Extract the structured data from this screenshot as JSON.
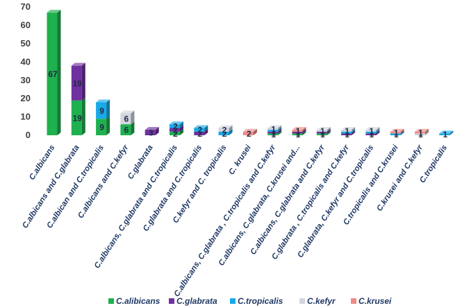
{
  "chart_data": {
    "type": "bar",
    "stacked": true,
    "title": "",
    "xlabel": "",
    "ylabel": "",
    "ylim": [
      0,
      70
    ],
    "yticks": [
      0,
      10,
      20,
      30,
      40,
      50,
      60,
      70
    ],
    "grid": false,
    "legend_position": "bottom",
    "categories": [
      "C.albicans",
      "C.albicans and C.glabrata",
      "C.albican  and C.tropicalis",
      "C.albicans and C.kefyr",
      "C.glabrata",
      "C.albicans, C.glabrata and C.tropicalis",
      "C.glabrata and C.tropicalis",
      "C.kefyr and C. tropicalis",
      "C. krusei",
      "C.albicans, C.glabrata , C.tropicalis and C.kefyr",
      "C.albicans, C.glabrata, C.krusei and...",
      "C.albicans, C.glabrata and C.kefyr",
      "C.glabrata , C.tropicalis and C.kefyr",
      "C.glabrata, C.kefyr and C.tropicalis",
      "C.tropicalis and C.krusei",
      "C.krusei and C.kefyr",
      "C.tropicalis"
    ],
    "series": [
      {
        "name": "C.alibicans",
        "color": "#1fb04f",
        "values": [
          67,
          19,
          9,
          6,
          0,
          2,
          0,
          0,
          0,
          1,
          1,
          1,
          0,
          0,
          0,
          0,
          0
        ]
      },
      {
        "name": "C.glabrata",
        "color": "#7030a0",
        "values": [
          0,
          19,
          0,
          0,
          3,
          2,
          2,
          0,
          0,
          1,
          1,
          1,
          1,
          1,
          0,
          0,
          0
        ]
      },
      {
        "name": "C.tropicalis",
        "color": "#17a9e8",
        "values": [
          0,
          0,
          9,
          0,
          0,
          2,
          2,
          2,
          0,
          1,
          0,
          0,
          1,
          1,
          1,
          0,
          1
        ]
      },
      {
        "name": "C.kefyr",
        "color": "#d0d5de",
        "values": [
          0,
          0,
          0,
          6,
          0,
          0,
          0,
          2,
          0,
          1,
          0,
          1,
          1,
          1,
          0,
          1,
          0
        ]
      },
      {
        "name": "C.krusei",
        "color": "#f08a86",
        "values": [
          0,
          0,
          0,
          0,
          0,
          0,
          0,
          0,
          2,
          0,
          1,
          0,
          0,
          0,
          1,
          1,
          0
        ]
      }
    ],
    "data_labels": [
      [
        67,
        null,
        null,
        null,
        null
      ],
      [
        19,
        19,
        null,
        null,
        null
      ],
      [
        9,
        null,
        9,
        null,
        null
      ],
      [
        6,
        null,
        null,
        6,
        null
      ],
      [
        null,
        3,
        null,
        null,
        null
      ],
      [
        2,
        2,
        2,
        null,
        null
      ],
      [
        null,
        2,
        2,
        null,
        null
      ],
      [
        null,
        null,
        2,
        2,
        null
      ],
      [
        null,
        null,
        null,
        null,
        2
      ],
      [
        1,
        1,
        1,
        1,
        null
      ],
      [
        1,
        1,
        null,
        null,
        1
      ],
      [
        1,
        1,
        null,
        1,
        null
      ],
      [
        null,
        1,
        1,
        1,
        null
      ],
      [
        null,
        1,
        1,
        1,
        null
      ],
      [
        null,
        null,
        1,
        null,
        1
      ],
      [
        null,
        null,
        null,
        1,
        1
      ],
      [
        null,
        null,
        1,
        null,
        null
      ]
    ]
  }
}
